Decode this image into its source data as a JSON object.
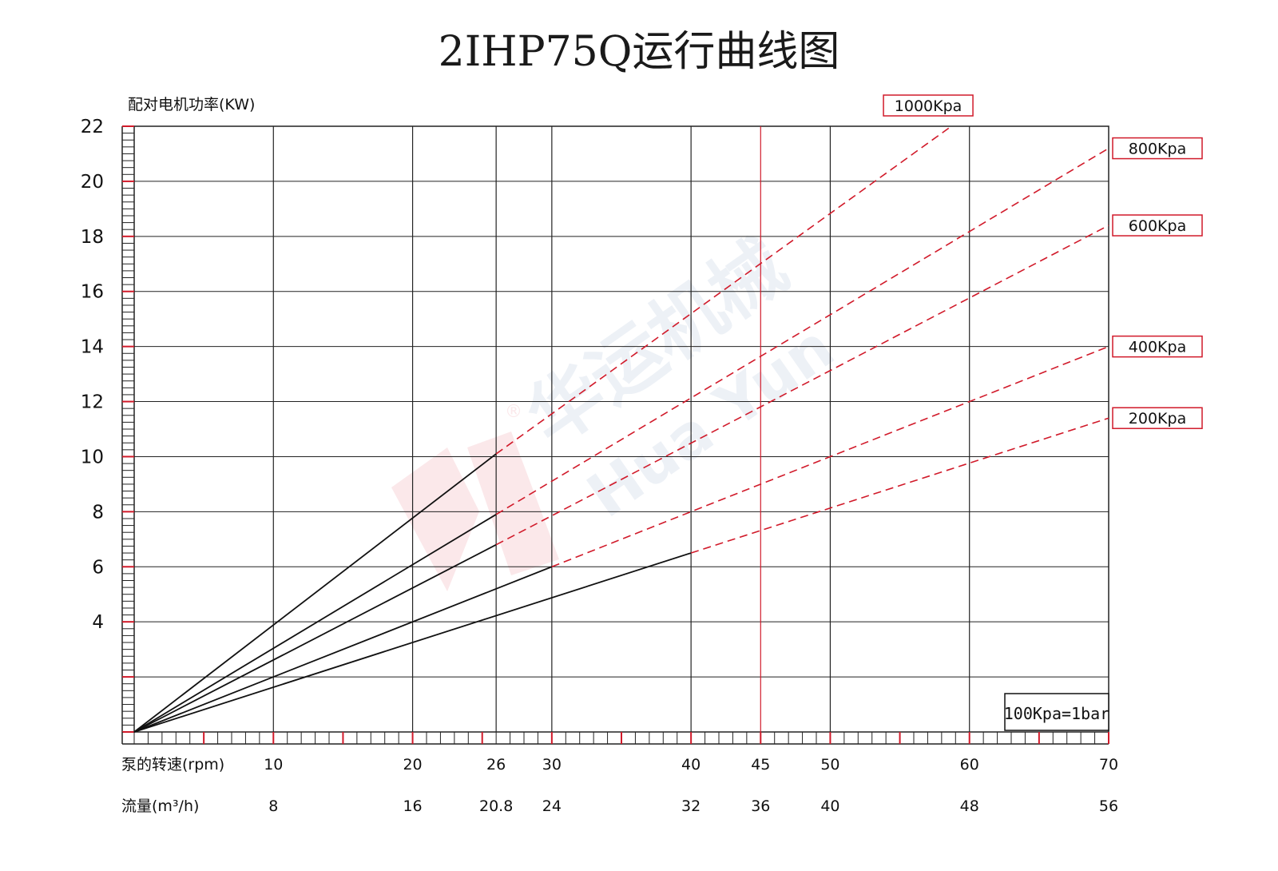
{
  "page": {
    "title": "2IHP75Q运行曲线图",
    "y_axis_label": "配对电机功率(KW)",
    "x_axis_label": "泵的转速(rpm)",
    "flow_axis_label": "流量(m³/h)",
    "note": "100Kpa=1bar",
    "watermark_cn": "华运机械",
    "watermark_en": "Hua Yun",
    "watermark_mark": "®"
  },
  "chart_data": {
    "type": "line",
    "title": "2IHP75Q运行曲线图",
    "xlabel": "泵的转速(rpm)",
    "ylabel": "配对电机功率(KW)",
    "xlim": [
      0,
      70
    ],
    "ylim": [
      0,
      22
    ],
    "y_ticks": [
      4,
      6,
      8,
      10,
      12,
      14,
      16,
      18,
      20,
      22
    ],
    "x_ticks": [
      10,
      20,
      26,
      30,
      40,
      45,
      50,
      60,
      70
    ],
    "flow_ticks": [
      {
        "rpm": 10,
        "label": "8"
      },
      {
        "rpm": 20,
        "label": "16"
      },
      {
        "rpm": 26,
        "label": "20.8"
      },
      {
        "rpm": 30,
        "label": "24"
      },
      {
        "rpm": 40,
        "label": "32"
      },
      {
        "rpm": 45,
        "label": "36"
      },
      {
        "rpm": 50,
        "label": "40"
      },
      {
        "rpm": 60,
        "label": "48"
      },
      {
        "rpm": 70,
        "label": "56"
      }
    ],
    "highlight_x": 45,
    "grid": true,
    "series": [
      {
        "name": "1000Kpa",
        "solid": [
          [
            0,
            0
          ],
          [
            26,
            10.1
          ]
        ],
        "dashed": [
          [
            26,
            10.1
          ],
          [
            58.7,
            22
          ]
        ]
      },
      {
        "name": "800Kpa",
        "solid": [
          [
            0,
            0
          ],
          [
            26,
            7.9
          ]
        ],
        "dashed": [
          [
            26,
            7.9
          ],
          [
            70,
            21.2
          ]
        ]
      },
      {
        "name": "600Kpa",
        "solid": [
          [
            0,
            0
          ],
          [
            26,
            6.8
          ]
        ],
        "dashed": [
          [
            26,
            6.8
          ],
          [
            70,
            18.4
          ]
        ]
      },
      {
        "name": "400Kpa",
        "solid": [
          [
            0,
            0
          ],
          [
            30,
            6.0
          ]
        ],
        "dashed": [
          [
            30,
            6.0
          ],
          [
            70,
            14.0
          ]
        ]
      },
      {
        "name": "200Kpa",
        "solid": [
          [
            0,
            0
          ],
          [
            40,
            6.5
          ]
        ],
        "dashed": [
          [
            40,
            6.5
          ],
          [
            70,
            11.4
          ]
        ]
      }
    ],
    "colors": {
      "solid": "#111111",
      "dashed": "#d11a2a",
      "grid": "#222222",
      "accent": "#d11a2a"
    }
  }
}
